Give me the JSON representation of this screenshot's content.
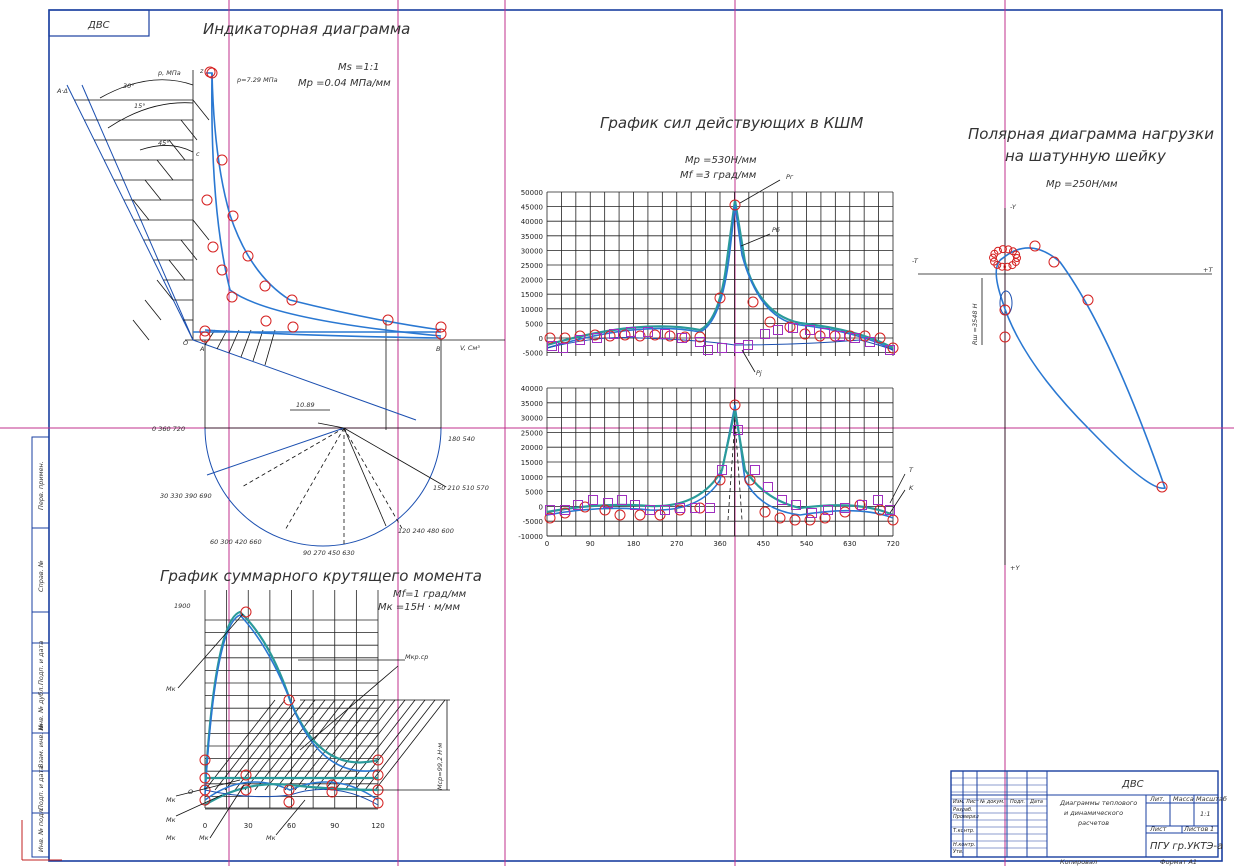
{
  "stamp": {
    "top_left": "ДВС"
  },
  "indicator": {
    "title": "Индикаторная диаграмма",
    "scale_s": "Ms =1:1",
    "scale_p": "Mp =0.04 МПа/мм",
    "p_axis": "p, МПа",
    "p_value": "p=7.29 МПа",
    "v_axis": "V, См³",
    "angles": [
      "30°",
      "15°",
      "45°"
    ],
    "point_labels": [
      "O",
      "A",
      "B",
      "c",
      "z",
      "a",
      "b",
      "A·Δ"
    ],
    "radius_label": "10.89",
    "crank_labels": [
      "0  360  720",
      "180  540",
      "30  330  390  690",
      "60  300  420  660",
      "90  270  450  630",
      "120  240  480  600",
      "150  210  510  570"
    ]
  },
  "forces": {
    "title": "График сил действующих в КШМ",
    "scale_p": "Mp =530Н/мм",
    "scale_phi": "Mf =3 град/мм",
    "y_ticks_top": [
      "50000",
      "45000",
      "40000",
      "35000",
      "30000",
      "25000",
      "20000",
      "15000",
      "10000",
      "5000",
      "0",
      "-5000"
    ],
    "y_ticks_bottom": [
      "40000",
      "35000",
      "30000",
      "25000",
      "20000",
      "15000",
      "10000",
      "5000",
      "0",
      "-5000",
      "-10000"
    ],
    "x_ticks": [
      "0",
      "90",
      "180",
      "270",
      "360",
      "450",
      "540",
      "630",
      "720"
    ],
    "curve_labels": [
      "Pг",
      "Pб",
      "Pj",
      "T",
      "K"
    ]
  },
  "polar": {
    "title_line1": "Полярная диаграмма нагрузки",
    "title_line2": "на шатунную шейку",
    "scale": "Mp =250Н/мм",
    "axes": [
      "-Y",
      "+Y",
      "-T",
      "+T"
    ],
    "offset_label": "Rш =3548 Н"
  },
  "torque": {
    "title": "График суммарного крутящего момента",
    "scale_phi": "Mf=1 град/мм",
    "scale_m": "Mк =15Н · м/мм",
    "y_tick": "1900",
    "x_ticks": [
      "0",
      "30",
      "60",
      "90",
      "120"
    ],
    "curve_labels": [
      "Mк",
      "Mкр",
      "Mср",
      "Mк",
      "Mк",
      "Mк",
      "Mк",
      "Mк"
    ],
    "mean_label": "Mкр.ср",
    "side_label": "Mср=99,2 Н·м",
    "o_label": "O"
  },
  "title_block": {
    "product": "ДВС",
    "drawing_name_1": "Диаграммы теплового",
    "drawing_name_2": "и динамического",
    "drawing_name_3": "расчетов",
    "org": "ПГУ гр.УКТЭ-а",
    "litera": "Лит.",
    "mass": "Масса",
    "scale_head": "Масштаб",
    "scale_val": "1:1",
    "sheet": "Лист",
    "sheets": "Листов",
    "sheets_val": "1",
    "rows": [
      "Изм.",
      "Лист",
      "№ докум.",
      "Подп.",
      "Дата",
      "Разраб.",
      "Проверил",
      "Т.контр.",
      "Н.контр.",
      "Утв."
    ],
    "copied": "Копировал",
    "format": "Формат   A1"
  },
  "side_strip": [
    "Перв. примен.",
    "Справ. №",
    "Подп. и дата",
    "Инв. № дубл.",
    "Взам. инв. №",
    "Подп. и дата",
    "Инв. № подл."
  ],
  "colors": {
    "frame": "#1a3fa0",
    "curve": "#2a78d2",
    "teal": "#2a9a9a",
    "marker_red": "#d52020",
    "marker_purple": "#a030c0",
    "guide": "#c0308c"
  }
}
